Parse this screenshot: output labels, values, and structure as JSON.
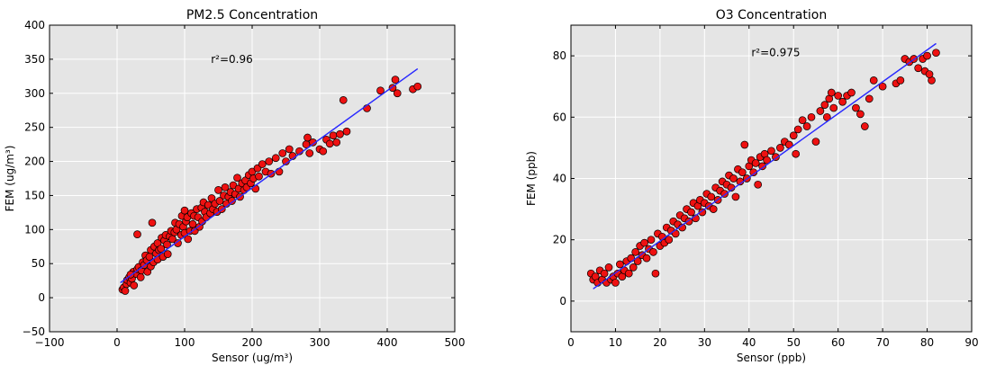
{
  "chart_data": [
    {
      "type": "scatter",
      "title": "PM2.5 Concentration",
      "xlabel": "Sensor (ug/m³)",
      "ylabel": "FEM (ug/m³)",
      "xlim": [
        -100,
        500
      ],
      "ylim": [
        -50,
        400
      ],
      "xticks": [
        -100,
        0,
        100,
        200,
        300,
        400,
        500
      ],
      "yticks": [
        -50,
        0,
        50,
        100,
        150,
        200,
        250,
        300,
        350,
        400
      ],
      "xtick_labels": [
        "−100",
        "0",
        "100",
        "200",
        "300",
        "400",
        "500"
      ],
      "ytick_labels": [
        "−50",
        "0",
        "50",
        "100",
        "150",
        "200",
        "250",
        "300",
        "350",
        "400"
      ],
      "annotation": {
        "text": "r²=0.96",
        "x": 170,
        "y": 350
      },
      "grid": true,
      "fit_line": {
        "x": [
          5,
          445
        ],
        "y": [
          22,
          336
        ]
      },
      "marker_color": "#ee1111",
      "line_color": "#2a2aff",
      "points": [
        [
          8,
          12
        ],
        [
          10,
          15
        ],
        [
          12,
          10
        ],
        [
          14,
          20
        ],
        [
          15,
          26
        ],
        [
          18,
          30
        ],
        [
          20,
          22
        ],
        [
          22,
          28
        ],
        [
          24,
          38
        ],
        [
          25,
          18
        ],
        [
          28,
          35
        ],
        [
          30,
          42
        ],
        [
          30,
          93
        ],
        [
          32,
          45
        ],
        [
          35,
          30
        ],
        [
          36,
          40
        ],
        [
          38,
          52
        ],
        [
          40,
          48
        ],
        [
          42,
          62
        ],
        [
          44,
          55
        ],
        [
          45,
          38
        ],
        [
          48,
          60
        ],
        [
          50,
          70
        ],
        [
          50,
          46
        ],
        [
          52,
          110
        ],
        [
          54,
          52
        ],
        [
          55,
          75
        ],
        [
          58,
          65
        ],
        [
          60,
          56
        ],
        [
          60,
          80
        ],
        [
          62,
          70
        ],
        [
          65,
          72
        ],
        [
          66,
          88
        ],
        [
          68,
          60
        ],
        [
          70,
          84
        ],
        [
          72,
          92
        ],
        [
          74,
          78
        ],
        [
          75,
          64
        ],
        [
          78,
          90
        ],
        [
          80,
          98
        ],
        [
          82,
          86
        ],
        [
          85,
          96
        ],
        [
          86,
          110
        ],
        [
          88,
          100
        ],
        [
          90,
          80
        ],
        [
          92,
          108
        ],
        [
          95,
          92
        ],
        [
          96,
          120
        ],
        [
          98,
          104
        ],
        [
          100,
          128
        ],
        [
          100,
          95
        ],
        [
          102,
          112
        ],
        [
          104,
          118
        ],
        [
          105,
          86
        ],
        [
          108,
          98
        ],
        [
          110,
          124
        ],
        [
          112,
          108
        ],
        [
          114,
          120
        ],
        [
          115,
          98
        ],
        [
          118,
          130
        ],
        [
          120,
          118
        ],
        [
          122,
          104
        ],
        [
          125,
          132
        ],
        [
          126,
          112
        ],
        [
          128,
          140
        ],
        [
          130,
          126
        ],
        [
          132,
          118
        ],
        [
          135,
          136
        ],
        [
          138,
          124
        ],
        [
          140,
          146
        ],
        [
          142,
          130
        ],
        [
          145,
          138
        ],
        [
          148,
          126
        ],
        [
          150,
          158
        ],
        [
          152,
          142
        ],
        [
          155,
          130
        ],
        [
          158,
          150
        ],
        [
          160,
          162
        ],
        [
          162,
          138
        ],
        [
          165,
          148
        ],
        [
          168,
          155
        ],
        [
          170,
          142
        ],
        [
          172,
          165
        ],
        [
          175,
          152
        ],
        [
          178,
          176
        ],
        [
          180,
          160
        ],
        [
          182,
          148
        ],
        [
          185,
          168
        ],
        [
          188,
          158
        ],
        [
          190,
          172
        ],
        [
          192,
          162
        ],
        [
          195,
          180
        ],
        [
          198,
          168
        ],
        [
          200,
          185
        ],
        [
          202,
          175
        ],
        [
          205,
          160
        ],
        [
          208,
          190
        ],
        [
          210,
          178
        ],
        [
          215,
          196
        ],
        [
          220,
          185
        ],
        [
          225,
          200
        ],
        [
          228,
          182
        ],
        [
          235,
          205
        ],
        [
          240,
          185
        ],
        [
          245,
          212
        ],
        [
          250,
          200
        ],
        [
          255,
          218
        ],
        [
          260,
          208
        ],
        [
          270,
          215
        ],
        [
          280,
          225
        ],
        [
          282,
          235
        ],
        [
          285,
          212
        ],
        [
          290,
          228
        ],
        [
          300,
          218
        ],
        [
          305,
          215
        ],
        [
          310,
          232
        ],
        [
          315,
          226
        ],
        [
          320,
          238
        ],
        [
          325,
          228
        ],
        [
          330,
          240
        ],
        [
          335,
          290
        ],
        [
          340,
          244
        ],
        [
          370,
          278
        ],
        [
          390,
          304
        ],
        [
          408,
          308
        ],
        [
          412,
          320
        ],
        [
          415,
          300
        ],
        [
          438,
          306
        ],
        [
          445,
          310
        ],
        [
          20,
          34
        ]
      ]
    },
    {
      "type": "scatter",
      "title": "O3 Concentration",
      "xlabel": "Sensor (ppb)",
      "ylabel": "FEM (ppb)",
      "xlim": [
        0,
        90
      ],
      "ylim": [
        -10,
        90
      ],
      "xticks": [
        0,
        10,
        20,
        30,
        40,
        50,
        60,
        70,
        80,
        90
      ],
      "yticks": [
        0,
        20,
        40,
        60,
        80
      ],
      "xtick_labels": [
        "0",
        "10",
        "20",
        "30",
        "40",
        "50",
        "60",
        "70",
        "80",
        "90"
      ],
      "ytick_labels": [
        "0",
        "20",
        "40",
        "60",
        "80"
      ],
      "annotation": {
        "text": "r²=0.975",
        "x": 46,
        "y": 81
      },
      "grid": true,
      "fit_line": {
        "x": [
          5,
          82
        ],
        "y": [
          4,
          84
        ]
      },
      "marker_color": "#ee1111",
      "line_color": "#2a2aff",
      "points": [
        [
          4.5,
          9
        ],
        [
          5,
          7
        ],
        [
          5.5,
          8
        ],
        [
          6,
          6
        ],
        [
          6.5,
          10
        ],
        [
          7,
          7
        ],
        [
          7.5,
          9
        ],
        [
          8,
          6
        ],
        [
          8.5,
          11
        ],
        [
          9,
          7
        ],
        [
          9.5,
          8
        ],
        [
          10,
          6
        ],
        [
          10.5,
          9
        ],
        [
          11,
          12
        ],
        [
          11.5,
          8
        ],
        [
          12,
          10
        ],
        [
          12.5,
          13
        ],
        [
          13,
          9
        ],
        [
          13.5,
          14
        ],
        [
          14,
          11
        ],
        [
          14.5,
          16
        ],
        [
          15,
          13
        ],
        [
          15.5,
          18
        ],
        [
          16,
          15
        ],
        [
          16.5,
          19
        ],
        [
          17,
          14
        ],
        [
          17.5,
          17
        ],
        [
          18,
          20
        ],
        [
          18.5,
          16
        ],
        [
          19,
          9
        ],
        [
          19.5,
          22
        ],
        [
          20,
          18
        ],
        [
          20.5,
          21
        ],
        [
          21,
          19
        ],
        [
          21.5,
          24
        ],
        [
          22,
          20
        ],
        [
          22.5,
          23
        ],
        [
          23,
          26
        ],
        [
          23.5,
          22
        ],
        [
          24,
          25
        ],
        [
          24.5,
          28
        ],
        [
          25,
          24
        ],
        [
          25.5,
          27
        ],
        [
          26,
          30
        ],
        [
          26.5,
          26
        ],
        [
          27,
          29
        ],
        [
          27.5,
          32
        ],
        [
          28,
          27
        ],
        [
          28.5,
          31
        ],
        [
          29,
          33
        ],
        [
          29.5,
          29
        ],
        [
          30,
          32
        ],
        [
          30.5,
          35
        ],
        [
          31,
          31
        ],
        [
          31.5,
          34
        ],
        [
          32,
          30
        ],
        [
          32.5,
          37
        ],
        [
          33,
          33
        ],
        [
          33.5,
          36
        ],
        [
          34,
          39
        ],
        [
          34.5,
          35
        ],
        [
          35,
          38
        ],
        [
          35.5,
          41
        ],
        [
          36,
          37
        ],
        [
          36.5,
          40
        ],
        [
          37,
          34
        ],
        [
          37.5,
          43
        ],
        [
          38,
          39
        ],
        [
          38.5,
          42
        ],
        [
          39,
          51
        ],
        [
          39.5,
          40
        ],
        [
          40,
          44
        ],
        [
          40.5,
          46
        ],
        [
          41,
          42
        ],
        [
          41.5,
          45
        ],
        [
          42,
          38
        ],
        [
          42.5,
          47
        ],
        [
          43,
          44
        ],
        [
          43.5,
          48
        ],
        [
          44,
          46
        ],
        [
          45,
          49
        ],
        [
          46,
          47
        ],
        [
          47,
          50
        ],
        [
          48,
          52
        ],
        [
          49,
          51
        ],
        [
          50,
          54
        ],
        [
          50.5,
          48
        ],
        [
          51,
          56
        ],
        [
          52,
          59
        ],
        [
          53,
          57
        ],
        [
          54,
          60
        ],
        [
          55,
          52
        ],
        [
          56,
          62
        ],
        [
          57,
          64
        ],
        [
          57.5,
          60
        ],
        [
          58,
          66
        ],
        [
          58.5,
          68
        ],
        [
          59,
          63
        ],
        [
          60,
          67
        ],
        [
          61,
          65
        ],
        [
          62,
          67
        ],
        [
          63,
          68
        ],
        [
          64,
          63
        ],
        [
          65,
          61
        ],
        [
          66,
          57
        ],
        [
          67,
          66
        ],
        [
          68,
          72
        ],
        [
          70,
          70
        ],
        [
          73,
          71
        ],
        [
          74,
          72
        ],
        [
          75,
          79
        ],
        [
          76,
          78
        ],
        [
          77,
          79
        ],
        [
          78,
          76
        ],
        [
          79,
          79
        ],
        [
          80,
          80
        ],
        [
          81,
          72
        ],
        [
          82,
          81
        ],
        [
          79.5,
          75
        ],
        [
          80.5,
          74
        ]
      ]
    }
  ]
}
